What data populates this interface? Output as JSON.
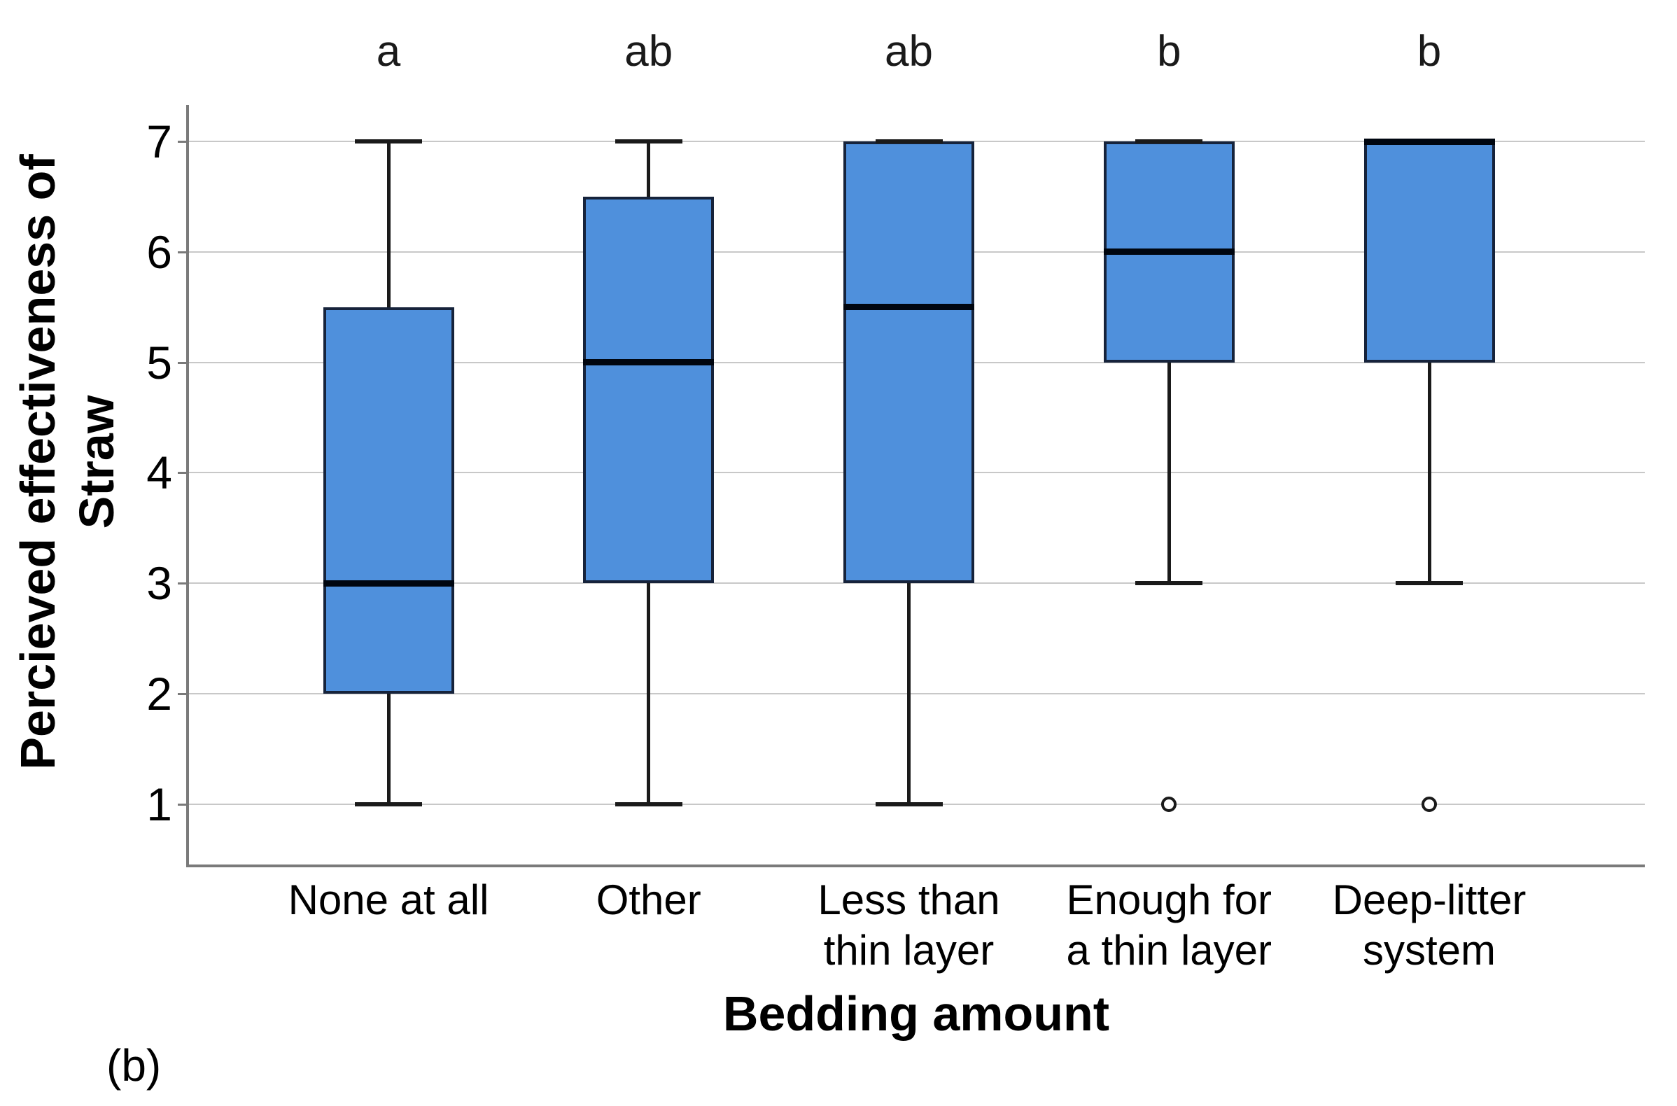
{
  "chart_data": {
    "type": "box",
    "title": "",
    "xlabel": "Bedding amount",
    "ylabel_lines": [
      "Percieved effectiveness of",
      "Straw"
    ],
    "panel_label": "(b)",
    "ylim": [
      1,
      7
    ],
    "yticks": [
      7,
      6,
      5,
      4,
      3,
      2,
      1
    ],
    "grid": true,
    "legend_position": "none",
    "categories": [
      "None at all",
      "Other",
      "Less than thin layer",
      "Enough for a thin layer",
      "Deep-litter system"
    ],
    "groups": [
      {
        "category": "None at all",
        "label_lines": [
          "None at all"
        ],
        "sig_letter": "a",
        "whisker_low": 1,
        "q1": 2,
        "median": 3,
        "q3": 5.5,
        "whisker_high": 7,
        "outliers": []
      },
      {
        "category": "Other",
        "label_lines": [
          "Other"
        ],
        "sig_letter": "ab",
        "whisker_low": 1,
        "q1": 3,
        "median": 5,
        "q3": 6.5,
        "whisker_high": 7,
        "outliers": []
      },
      {
        "category": "Less than thin layer",
        "label_lines": [
          "Less than",
          "thin layer"
        ],
        "sig_letter": "ab",
        "whisker_low": 1,
        "q1": 3,
        "median": 5.5,
        "q3": 7,
        "whisker_high": 7,
        "outliers": []
      },
      {
        "category": "Enough for a thin layer",
        "label_lines": [
          "Enough for",
          "a thin layer"
        ],
        "sig_letter": "b",
        "whisker_low": 3,
        "q1": 5,
        "median": 6,
        "q3": 7,
        "whisker_high": 7,
        "outliers": [
          1
        ]
      },
      {
        "category": "Deep-litter system",
        "label_lines": [
          "Deep-litter",
          "system"
        ],
        "sig_letter": "b",
        "whisker_low": 3,
        "q1": 5,
        "median": 7,
        "q3": 7,
        "whisker_high": 7,
        "outliers": [
          1
        ]
      }
    ],
    "colors": {
      "box_fill": "#4F90DC",
      "box_border": "#16233B",
      "median": "#000610",
      "whisker": "#1A1A1A",
      "grid": "#C8C8C8",
      "axis": "#7A7A7A",
      "text": "#000000"
    }
  }
}
